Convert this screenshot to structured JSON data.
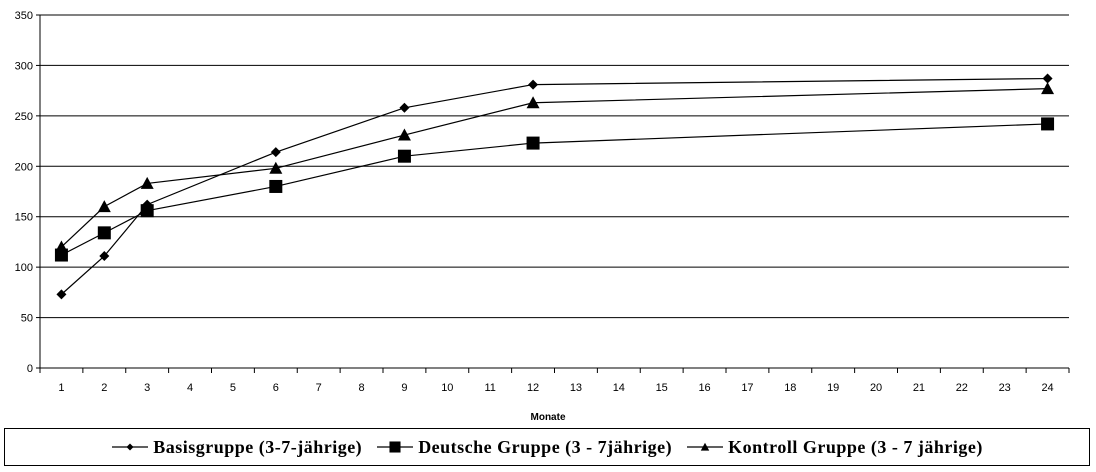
{
  "chart_data": {
    "type": "line",
    "x": [
      "1",
      "2",
      "3",
      "4",
      "5",
      "6",
      "7",
      "8",
      "9",
      "10",
      "11",
      "12",
      "13",
      "14",
      "15",
      "16",
      "17",
      "18",
      "19",
      "20",
      "21",
      "22",
      "23",
      "24"
    ],
    "xlabel": "Monate",
    "ylabel": "",
    "ylim": [
      0,
      350
    ],
    "yticks": [
      0,
      50,
      100,
      150,
      200,
      250,
      300,
      350
    ],
    "grid": "horizontal",
    "legend": "bottom",
    "series": [
      {
        "name": "Basisgruppe (3-7-jährige)",
        "marker": "diamond",
        "points": [
          [
            1,
            73
          ],
          [
            2,
            111
          ],
          [
            3,
            162
          ],
          [
            6,
            214
          ],
          [
            9,
            258
          ],
          [
            12,
            281
          ],
          [
            24,
            287
          ]
        ]
      },
      {
        "name": "Deutsche Gruppe (3 - 7jährige)",
        "marker": "square",
        "points": [
          [
            1,
            112
          ],
          [
            2,
            134
          ],
          [
            3,
            156
          ],
          [
            6,
            180
          ],
          [
            9,
            210
          ],
          [
            12,
            223
          ],
          [
            24,
            242
          ]
        ]
      },
      {
        "name": "Kontroll Gruppe (3 - 7 jährige)",
        "marker": "triangle",
        "points": [
          [
            1,
            120
          ],
          [
            2,
            160
          ],
          [
            3,
            183
          ],
          [
            6,
            198
          ],
          [
            9,
            231
          ],
          [
            12,
            263
          ],
          [
            24,
            277
          ]
        ]
      }
    ]
  }
}
